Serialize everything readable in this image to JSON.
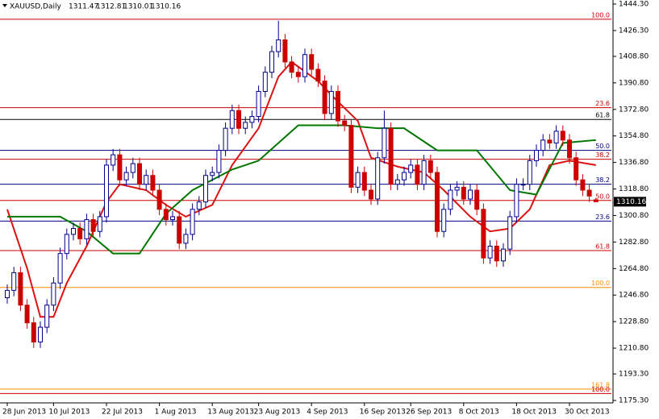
{
  "chart_data": {
    "type": "candlestick",
    "title": "XAUUSD,Daily",
    "categories": [
      "28 Jun 2013",
      null,
      null,
      null,
      null,
      null,
      null,
      "10 Jul 2013",
      null,
      null,
      null,
      null,
      null,
      null,
      null,
      "22 Jul 2013",
      null,
      null,
      null,
      null,
      null,
      null,
      null,
      "1 Aug 2013",
      null,
      null,
      null,
      null,
      null,
      null,
      null,
      "13 Aug 2013",
      null,
      null,
      null,
      null,
      null,
      null,
      "23 Aug 2013",
      null,
      null,
      null,
      null,
      null,
      null,
      null,
      "4 Sep 2013",
      null,
      null,
      null,
      null,
      null,
      null,
      null,
      "16 Sep 2013",
      null,
      null,
      null,
      null,
      null,
      null,
      "26 Sep 2013",
      null,
      null,
      null,
      null,
      null,
      null,
      null,
      "8 Oct 2013",
      null,
      null,
      null,
      null,
      null,
      null,
      null,
      "18 Oct 2013",
      null,
      null,
      null,
      null,
      null,
      null,
      null,
      "30 Oct 2013",
      null,
      null,
      null,
      null
    ],
    "open": [
      1245,
      1250,
      1262,
      1240,
      1228,
      1215,
      1225,
      1240,
      1255,
      1275,
      1288,
      1292,
      1285,
      1298,
      1290,
      1300,
      1335,
      1342,
      1325,
      1330,
      1336,
      1322,
      1328,
      1318,
      1305,
      1298,
      1300,
      1282,
      1288,
      1305,
      1310,
      1328,
      1330,
      1345,
      1360,
      1372,
      1360,
      1364,
      1368,
      1385,
      1398,
      1412,
      1420,
      1405,
      1398,
      1395,
      1410,
      1400,
      1392,
      1370,
      1385,
      1365,
      1362,
      1320,
      1330,
      1318,
      1312,
      1340,
      1360,
      1322,
      1325,
      1330,
      1335,
      1322,
      1338,
      1330,
      1290,
      1305,
      1318,
      1320,
      1312,
      1318,
      1305,
      1272,
      1280,
      1270,
      1278,
      1300,
      1322,
      1322,
      1338,
      1345,
      1352,
      1350,
      1358,
      1352,
      1340,
      1325,
      1318,
      1311.47
    ],
    "high": [
      1254,
      1266,
      1266,
      1244,
      1232,
      1229,
      1244,
      1259,
      1279,
      1292,
      1296,
      1296,
      1302,
      1302,
      1304,
      1339,
      1346,
      1346,
      1334,
      1340,
      1340,
      1332,
      1332,
      1322,
      1309,
      1304,
      1304,
      1292,
      1309,
      1314,
      1332,
      1334,
      1349,
      1364,
      1376,
      1376,
      1368,
      1372,
      1389,
      1402,
      1416,
      1433,
      1424,
      1409,
      1402,
      1414,
      1414,
      1404,
      1396,
      1389,
      1389,
      1369,
      1366,
      1334,
      1334,
      1322,
      1344,
      1372,
      1364,
      1329,
      1334,
      1339,
      1339,
      1342,
      1342,
      1334,
      1309,
      1322,
      1324,
      1324,
      1322,
      1322,
      1309,
      1284,
      1284,
      1282,
      1304,
      1326,
      1326,
      1342,
      1349,
      1356,
      1356,
      1362,
      1362,
      1356,
      1344,
      1329,
      1322,
      1312.81
    ],
    "low": [
      1241,
      1246,
      1236,
      1224,
      1211,
      1211,
      1221,
      1236,
      1251,
      1271,
      1284,
      1281,
      1281,
      1286,
      1286,
      1296,
      1331,
      1321,
      1321,
      1326,
      1318,
      1318,
      1314,
      1301,
      1294,
      1294,
      1278,
      1278,
      1284,
      1301,
      1306,
      1324,
      1326,
      1341,
      1356,
      1356,
      1356,
      1360,
      1364,
      1381,
      1394,
      1408,
      1401,
      1394,
      1391,
      1391,
      1396,
      1388,
      1366,
      1366,
      1361,
      1358,
      1316,
      1316,
      1314,
      1308,
      1308,
      1336,
      1318,
      1318,
      1321,
      1326,
      1318,
      1318,
      1326,
      1286,
      1286,
      1301,
      1314,
      1308,
      1308,
      1301,
      1268,
      1268,
      1266,
      1266,
      1274,
      1296,
      1318,
      1318,
      1334,
      1341,
      1346,
      1346,
      1348,
      1336,
      1321,
      1314,
      1310,
      1310.01
    ],
    "close": [
      1250,
      1262,
      1240,
      1228,
      1215,
      1225,
      1240,
      1255,
      1275,
      1288,
      1292,
      1285,
      1298,
      1290,
      1300,
      1335,
      1342,
      1325,
      1330,
      1336,
      1322,
      1328,
      1318,
      1305,
      1298,
      1300,
      1282,
      1288,
      1305,
      1310,
      1328,
      1330,
      1345,
      1360,
      1372,
      1360,
      1364,
      1368,
      1385,
      1398,
      1412,
      1420,
      1405,
      1398,
      1395,
      1410,
      1400,
      1392,
      1370,
      1385,
      1365,
      1362,
      1320,
      1330,
      1318,
      1312,
      1340,
      1360,
      1322,
      1325,
      1330,
      1335,
      1322,
      1338,
      1330,
      1290,
      1305,
      1318,
      1320,
      1312,
      1318,
      1305,
      1272,
      1280,
      1270,
      1278,
      1300,
      1322,
      1322,
      1338,
      1345,
      1352,
      1350,
      1358,
      1352,
      1340,
      1325,
      1318,
      1314,
      1310.16
    ],
    "up_color": "#00008b",
    "down_color": "#cc0000",
    "lines": [
      {
        "color": "#dd1111",
        "x": [
          0,
          3,
          5,
          7,
          9,
          12,
          15,
          17,
          21,
          24,
          27,
          31,
          34,
          38,
          41,
          43,
          47,
          50,
          53,
          55,
          59,
          63,
          66,
          70,
          73,
          76,
          79,
          82,
          85,
          89
        ],
        "values": [
          1305,
          1265,
          1232,
          1232,
          1255,
          1280,
          1310,
          1322,
          1318,
          1308,
          1300,
          1308,
          1335,
          1360,
          1395,
          1405,
          1392,
          1378,
          1365,
          1340,
          1334,
          1330,
          1318,
          1300,
          1290,
          1292,
          1305,
          1335,
          1338,
          1335
        ]
      },
      {
        "color": "#007700",
        "x": [
          0,
          8,
          12,
          16,
          20,
          24,
          28,
          34,
          38,
          44,
          51,
          56,
          60,
          65,
          71,
          76,
          80,
          84,
          89
        ],
        "values": [
          1300,
          1300,
          1290,
          1275,
          1275,
          1302,
          1318,
          1332,
          1338,
          1362,
          1362,
          1360,
          1360,
          1345,
          1345,
          1318,
          1315,
          1350,
          1352
        ]
      }
    ],
    "levels": [
      {
        "label": "100.0",
        "value": 1434,
        "color": "#cc0000"
      },
      {
        "label": "23.6",
        "value": 1374,
        "color": "#cc0000"
      },
      {
        "label": "61.8",
        "value": 1366,
        "color": "#000000"
      },
      {
        "label": "50.0",
        "value": 1345,
        "color": "#000080"
      },
      {
        "label": "38.2",
        "value": 1339,
        "color": "#cc0000"
      },
      {
        "label": "38.2",
        "value": 1322,
        "color": "#000080"
      },
      {
        "label": "50.0",
        "value": 1311,
        "color": "#cc0000"
      },
      {
        "label": "23.6",
        "value": 1297,
        "color": "#000080"
      },
      {
        "label": "61.8",
        "value": 1277,
        "color": "#cc0000"
      },
      {
        "label": "100.0",
        "value": 1252,
        "color": "#ff8c00"
      },
      {
        "label": "161.8",
        "value": 1183,
        "color": "#ff8c00"
      },
      {
        "label": "100.0",
        "value": 1180,
        "color": "#cc0000"
      }
    ],
    "ylim": [
      1175.3,
      1444.3
    ],
    "yticks": [
      {
        "value": 1444.3,
        "label": "1444.30"
      },
      {
        "value": 1426.3,
        "label": "1426.30"
      },
      {
        "value": 1408.8,
        "label": "1408.80"
      },
      {
        "value": 1390.8,
        "label": "1390.80"
      },
      {
        "value": 1372.8,
        "label": "1372.80"
      },
      {
        "value": 1354.8,
        "label": "1354.80"
      },
      {
        "value": 1336.8,
        "label": "1336.80"
      },
      {
        "value": 1318.8,
        "label": "1318.80"
      },
      {
        "value": 1300.8,
        "label": "1300.80"
      },
      {
        "value": 1282.8,
        "label": "1282.80"
      },
      {
        "value": 1264.8,
        "label": "1264.80"
      },
      {
        "value": 1246.8,
        "label": "1246.80"
      },
      {
        "value": 1228.8,
        "label": "1228.80"
      },
      {
        "value": 1210.8,
        "label": "1210.80"
      },
      {
        "value": 1193.3,
        "label": "1193.30"
      },
      {
        "value": 1175.3,
        "label": "1175.30"
      }
    ]
  }
}
